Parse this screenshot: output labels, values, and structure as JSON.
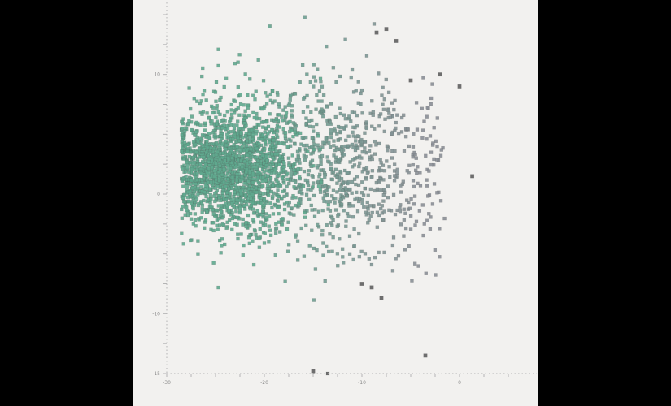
{
  "chart_data": {
    "type": "scatter",
    "title": "",
    "xlabel": "",
    "ylabel": "",
    "grid": false,
    "legend": "none",
    "xlim": [
      -30,
      5
    ],
    "ylim": [
      -15,
      15
    ],
    "x_ticks": [
      {
        "value": -30,
        "label": "-30"
      },
      {
        "value": -20,
        "label": "-20"
      },
      {
        "value": -10,
        "label": "-10"
      },
      {
        "value": 0,
        "label": "0"
      }
    ],
    "y_ticks": [
      {
        "value": -15,
        "label": "-15"
      },
      {
        "value": -10,
        "label": "-10"
      },
      {
        "value": 0,
        "label": "0"
      },
      {
        "value": 10,
        "label": "10"
      }
    ],
    "colors": {
      "background": "#f2f1ef",
      "frame": "#000000",
      "axis": "#b4b4b4",
      "point_dense": "#5fa88e",
      "point_sparse": "#8a8e96",
      "point_outlier": "#5f5f5f"
    },
    "series": [
      {
        "cluster": "dense",
        "n": 1600,
        "center": [
          -23.5,
          2.2
        ],
        "spread": [
          3.2,
          2.5
        ]
      },
      {
        "cluster": "diffuse",
        "n": 1100,
        "center": [
          -13.5,
          2.2
        ],
        "spread": [
          6.5,
          3.8
        ],
        "x_range": [
          -26,
          -1.5
        ]
      },
      {
        "cluster": "outliers",
        "points": [
          [
            -8.5,
            13.5
          ],
          [
            -7.5,
            13.8
          ],
          [
            -6.5,
            12.8
          ],
          [
            -5.0,
            9.5
          ],
          [
            -2.0,
            10.0
          ],
          [
            0.0,
            9.0
          ],
          [
            -10.0,
            -7.5
          ],
          [
            -9.0,
            -7.8
          ],
          [
            -8.0,
            -8.7
          ],
          [
            -3.5,
            -13.5
          ],
          [
            -15.0,
            -14.8
          ],
          [
            1.3,
            1.5
          ]
        ]
      }
    ]
  }
}
